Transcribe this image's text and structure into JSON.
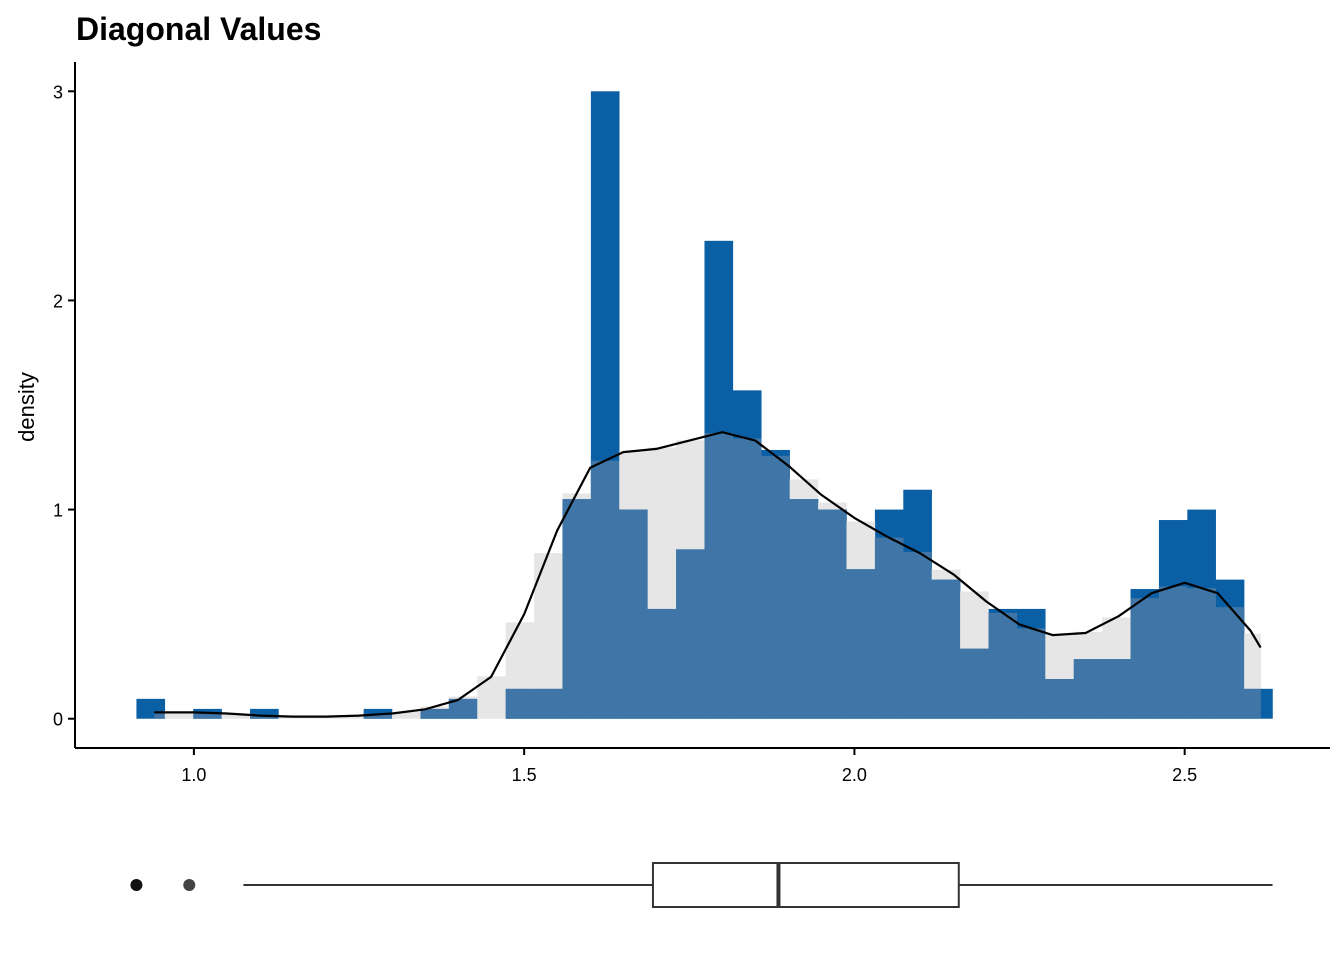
{
  "chart_data": [
    {
      "type": "bar",
      "title": "Diagonal Values",
      "xlabel": "",
      "ylabel": "density",
      "xlim": [
        0.82,
        2.72
      ],
      "ylim": [
        -0.14,
        3.14
      ],
      "x_ticks": [
        "1.0",
        "1.5",
        "2.0",
        "2.5"
      ],
      "y_ticks": [
        "0",
        "1",
        "2",
        "3"
      ],
      "grid": false,
      "bin_width": 0.0429,
      "colors": {
        "histogram": "#0a5fa5",
        "density_fill": "#e6e6e6",
        "overlap": "#3f76a7",
        "density_line": "#000000"
      },
      "series": [
        {
          "name": "histogram",
          "bin_start": [
            0.913,
            0.956,
            0.999,
            1.042,
            1.085,
            1.128,
            1.171,
            1.214,
            1.257,
            1.3,
            1.343,
            1.386,
            1.429,
            1.472,
            1.515,
            1.558,
            1.601,
            1.644,
            1.687,
            1.73,
            1.773,
            1.816,
            1.859,
            1.902,
            1.945,
            1.988,
            2.031,
            2.074,
            2.117,
            2.16,
            2.203,
            2.246,
            2.289,
            2.332,
            2.375,
            2.418,
            2.461,
            2.504,
            2.547,
            2.59
          ],
          "values": [
            0.095,
            0.0,
            0.047,
            0.0,
            0.047,
            0.0,
            0.0,
            0.0,
            0.047,
            0.0,
            0.047,
            0.095,
            0.0,
            0.143,
            0.143,
            1.05,
            3.0,
            1.0,
            0.525,
            0.81,
            2.285,
            1.57,
            1.285,
            1.05,
            1.0,
            0.715,
            1.0,
            1.095,
            0.665,
            0.335,
            0.525,
            0.525,
            0.19,
            0.285,
            0.285,
            0.62,
            0.95,
            1.0,
            0.665,
            0.143
          ]
        },
        {
          "name": "density",
          "x": [
            0.94,
            1.0,
            1.05,
            1.1,
            1.15,
            1.2,
            1.25,
            1.3,
            1.35,
            1.4,
            1.45,
            1.5,
            1.55,
            1.6,
            1.65,
            1.7,
            1.75,
            1.8,
            1.85,
            1.9,
            1.95,
            2.0,
            2.05,
            2.1,
            2.15,
            2.2,
            2.25,
            2.3,
            2.35,
            2.4,
            2.45,
            2.5,
            2.55,
            2.6,
            2.615
          ],
          "values": [
            0.03,
            0.03,
            0.025,
            0.015,
            0.01,
            0.01,
            0.015,
            0.025,
            0.045,
            0.09,
            0.2,
            0.5,
            0.9,
            1.2,
            1.275,
            1.29,
            1.33,
            1.37,
            1.33,
            1.21,
            1.07,
            0.96,
            0.87,
            0.79,
            0.69,
            0.56,
            0.45,
            0.4,
            0.41,
            0.49,
            0.6,
            0.65,
            0.6,
            0.42,
            0.34
          ]
        }
      ]
    },
    {
      "type": "boxplot",
      "whisker_low": 1.075,
      "q1": 1.695,
      "median": 1.885,
      "q3": 2.158,
      "whisker_high": 2.633,
      "outliers": [
        0.913,
        0.993
      ]
    }
  ]
}
